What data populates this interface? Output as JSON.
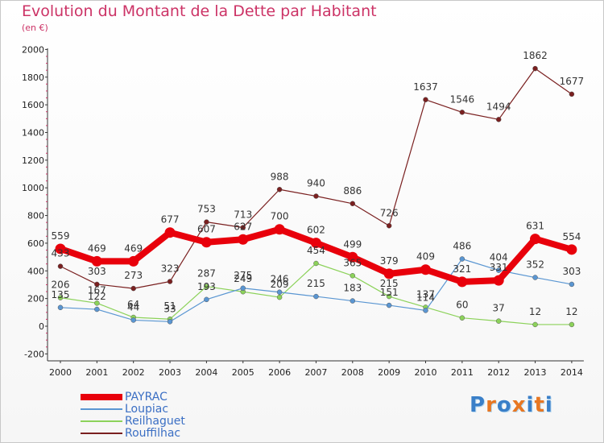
{
  "title": "Evolution du Montant de la Dette par Habitant",
  "subtitle": "(en €)",
  "logo": "Proxiti",
  "chart_data": {
    "type": "line",
    "title": "Evolution du Montant de la Dette par Habitant",
    "subtitle": "(en €)",
    "x": [
      "2000",
      "2001",
      "2002",
      "2003",
      "2004",
      "2005",
      "2006",
      "2007",
      "2008",
      "2009",
      "2010",
      "2011",
      "2012",
      "2013",
      "2014"
    ],
    "ylim": [
      -200,
      2000
    ],
    "yticks": [
      -200,
      0,
      200,
      400,
      600,
      800,
      1000,
      1200,
      1400,
      1600,
      1800,
      2000
    ],
    "grid": false,
    "legend": "bottom-left",
    "series": [
      {
        "name": "PAYRAC",
        "color": "#e8000b",
        "values": [
          559,
          469,
          469,
          677,
          607,
          627,
          700,
          602,
          499,
          379,
          409,
          321,
          331,
          631,
          554
        ],
        "labels": [
          "559",
          "469",
          "469",
          "677",
          "607",
          "627",
          "700",
          "602",
          "499",
          "379",
          "409",
          "321",
          "331",
          "631",
          "554"
        ]
      },
      {
        "name": "Loupiac",
        "color": "#5a96d2",
        "values": [
          135,
          122,
          44,
          33,
          193,
          275,
          246,
          215,
          183,
          151,
          114,
          486,
          404,
          352,
          303
        ],
        "labels": [
          "135",
          "122",
          "44",
          "33",
          "193",
          "275",
          "246",
          "215",
          "183",
          "151",
          "114",
          "486",
          "404",
          "352",
          "303"
        ]
      },
      {
        "name": "Reilhaguet",
        "color": "#8cd25a",
        "values": [
          206,
          167,
          64,
          51,
          287,
          249,
          209,
          454,
          365,
          215,
          137,
          60,
          37,
          12,
          12
        ],
        "labels": [
          "206",
          "167",
          "64",
          "51",
          "287",
          "249",
          "209",
          "454",
          "365",
          "215",
          "137",
          "60",
          "37",
          "12",
          "12"
        ]
      },
      {
        "name": "Rouffilhac",
        "color": "#7a2020",
        "values": [
          433,
          303,
          273,
          323,
          753,
          713,
          988,
          940,
          886,
          726,
          1637,
          1546,
          1494,
          1862,
          1677
        ],
        "labels": [
          "433",
          "303",
          "273",
          "323",
          "753",
          "713",
          "988",
          "940",
          "886",
          "726",
          "1637",
          "1546",
          "1494",
          "1862",
          "1677"
        ]
      }
    ]
  }
}
